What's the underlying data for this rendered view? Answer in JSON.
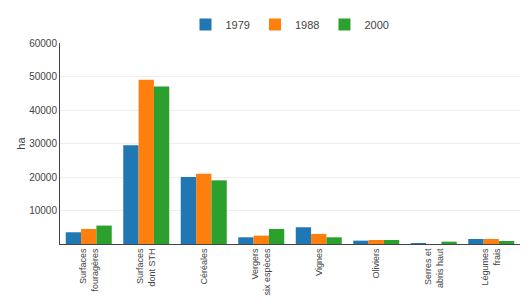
{
  "chart_data": {
    "type": "bar",
    "ylabel": "ha",
    "categories": [
      "Surfaces\nfouragères",
      "Surfaces\ndont STH",
      "Céréales",
      "Vergers\nsix espèces",
      "Vignes",
      "Oliviers",
      "Serres et\nabris haut",
      "Légumes\nfrais"
    ],
    "series": [
      {
        "name": "1979",
        "values": [
          3500,
          29500,
          20000,
          2000,
          5000,
          1000,
          200,
          1500
        ]
      },
      {
        "name": "1988",
        "values": [
          4500,
          49000,
          21000,
          2500,
          3000,
          1200,
          0,
          1500
        ]
      },
      {
        "name": "2000",
        "values": [
          5500,
          47000,
          19000,
          4500,
          2000,
          1200,
          700,
          900
        ]
      }
    ],
    "ylim": [
      0,
      60000
    ],
    "yticks": [
      {
        "value": 0,
        "label": ""
      },
      10000,
      20000,
      30000,
      40000,
      50000,
      60000
    ],
    "grid": true,
    "legend": "top"
  }
}
